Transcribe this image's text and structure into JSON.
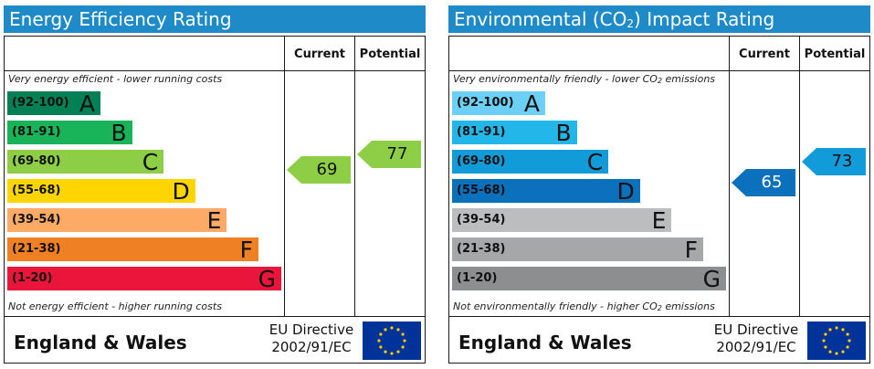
{
  "chart_data": [
    {
      "type": "bar",
      "title": "Energy Efficiency Rating",
      "columns": [
        "Current",
        "Potential"
      ],
      "top_note": "Very energy efficient - lower running costs",
      "bottom_note": "Not energy efficient - higher running costs",
      "bands": [
        {
          "range": "(92-100)",
          "letter": "A",
          "color": "#008054",
          "text": "dark"
        },
        {
          "range": "(81-91)",
          "letter": "B",
          "color": "#19b459",
          "text": "dark"
        },
        {
          "range": "(69-80)",
          "letter": "C",
          "color": "#8dce46",
          "text": "dark"
        },
        {
          "range": "(55-68)",
          "letter": "D",
          "color": "#ffd500",
          "text": "dark"
        },
        {
          "range": "(39-54)",
          "letter": "E",
          "color": "#fcaa65",
          "text": "dark"
        },
        {
          "range": "(21-38)",
          "letter": "F",
          "color": "#ef8023",
          "text": "dark"
        },
        {
          "range": "(1-20)",
          "letter": "G",
          "color": "#e9153b",
          "text": "dark"
        }
      ],
      "current": {
        "value": 69,
        "color": "#8dce46",
        "text_color": "#111111"
      },
      "potential": {
        "value": 77,
        "color": "#8dce46",
        "text_color": "#111111"
      },
      "footer": {
        "region": "England & Wales",
        "directive_line1": "EU Directive",
        "directive_line2": "2002/91/EC"
      }
    },
    {
      "type": "bar",
      "title_prefix": "Environmental (CO",
      "title_sub": "2",
      "title_suffix": ") Impact Rating",
      "columns": [
        "Current",
        "Potential"
      ],
      "top_note_prefix": "Very environmentally friendly - lower CO",
      "top_note_sub": "2",
      "top_note_suffix": " emissions",
      "bottom_note_prefix": "Not environmentally friendly - higher CO",
      "bottom_note_sub": "2",
      "bottom_note_suffix": " emissions",
      "bands": [
        {
          "range": "(92-100)",
          "letter": "A",
          "color": "#6ccff6",
          "text": "dark"
        },
        {
          "range": "(81-91)",
          "letter": "B",
          "color": "#22b6e9",
          "text": "dark"
        },
        {
          "range": "(69-80)",
          "letter": "C",
          "color": "#119bd8",
          "text": "dark"
        },
        {
          "range": "(55-68)",
          "letter": "D",
          "color": "#0c71bd",
          "text": "dark"
        },
        {
          "range": "(39-54)",
          "letter": "E",
          "color": "#bbbdbf",
          "text": "dark"
        },
        {
          "range": "(21-38)",
          "letter": "F",
          "color": "#a5a7a9",
          "text": "dark"
        },
        {
          "range": "(1-20)",
          "letter": "G",
          "color": "#8c8e90",
          "text": "dark"
        }
      ],
      "current": {
        "value": 65,
        "color": "#0c71bd",
        "text_color": "#ffffff"
      },
      "potential": {
        "value": 73,
        "color": "#119bd8",
        "text_color": "#111111"
      },
      "footer": {
        "region": "England & Wales",
        "directive_line1": "EU Directive",
        "directive_line2": "2002/91/EC"
      }
    }
  ]
}
